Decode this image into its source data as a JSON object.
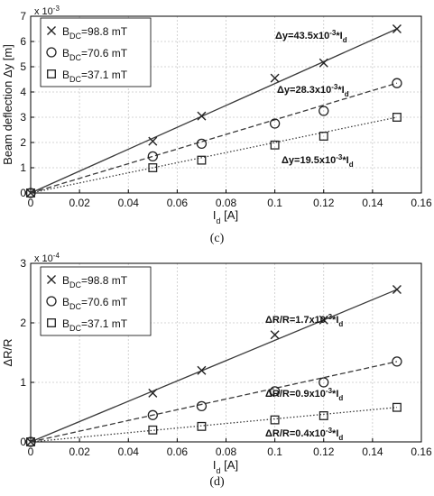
{
  "chart_data": [
    {
      "panel": "(c)",
      "type": "scatter",
      "ylabel": "Beam deflection  Δy [m]",
      "xlabel": "I_d [A]",
      "exponent_label": "x 10^-3",
      "xlim": [
        0,
        0.16
      ],
      "ylim": [
        0,
        7
      ],
      "xticks": [
        0,
        0.02,
        0.04,
        0.06,
        0.08,
        0.1,
        0.12,
        0.14,
        0.16
      ],
      "xtick_labels": [
        "0",
        "0.02",
        "0.04",
        "0.06",
        "0.08",
        "0.1",
        "0.12",
        "0.14",
        "0.16"
      ],
      "yticks": [
        0,
        1,
        2,
        3,
        4,
        5,
        6,
        7
      ],
      "ytick_labels": [
        "0",
        "1",
        "2",
        "3",
        "4",
        "5",
        "6",
        "7"
      ],
      "grid": true,
      "legend_position": "top-left",
      "series": [
        {
          "name": "B_DC=98.8 mT",
          "marker": "x",
          "line": "solid",
          "x": [
            0,
            0.05,
            0.07,
            0.1,
            0.12,
            0.15
          ],
          "y": [
            0,
            2.05,
            3.05,
            4.55,
            5.15,
            6.5
          ],
          "fit_slope": 43.5,
          "fit_label": "Δy=43.5x10^-3*I_d"
        },
        {
          "name": "B_DC=70.6 mT",
          "marker": "o",
          "line": "dashed",
          "x": [
            0,
            0.05,
            0.07,
            0.1,
            0.12,
            0.15
          ],
          "y": [
            0,
            1.45,
            1.95,
            2.75,
            3.25,
            4.35
          ],
          "fit_slope": 28.3,
          "fit_label": "Δy=28.3x10^-3*I_d"
        },
        {
          "name": "B_DC=37.1 mT",
          "marker": "s",
          "line": "dotted",
          "x": [
            0,
            0.05,
            0.07,
            0.1,
            0.12,
            0.15
          ],
          "y": [
            0,
            1.0,
            1.3,
            1.9,
            2.25,
            3.0
          ],
          "fit_slope": 19.5,
          "fit_label": "Δy=19.5x10^-3*I_d"
        }
      ]
    },
    {
      "panel": "(d)",
      "type": "scatter",
      "ylabel": "ΔR/R",
      "xlabel": "I_d [A]",
      "exponent_label": "x 10^-4",
      "xlim": [
        0,
        0.16
      ],
      "ylim": [
        0,
        3
      ],
      "xticks": [
        0,
        0.02,
        0.04,
        0.06,
        0.08,
        0.1,
        0.12,
        0.14,
        0.16
      ],
      "xtick_labels": [
        "0",
        "0.02",
        "0.04",
        "0.06",
        "0.08",
        "0.1",
        "0.12",
        "0.14",
        "0.16"
      ],
      "yticks": [
        0,
        1,
        2,
        3
      ],
      "ytick_labels": [
        "0",
        "1",
        "2",
        "3"
      ],
      "grid": true,
      "legend_position": "top-left",
      "series": [
        {
          "name": "B_DC=98.8 mT",
          "marker": "x",
          "line": "solid",
          "x": [
            0,
            0.05,
            0.07,
            0.1,
            0.12,
            0.15
          ],
          "y": [
            0,
            0.82,
            1.2,
            1.8,
            2.05,
            2.56
          ],
          "fit_slope": 17,
          "fit_label": "ΔR/R=1.7x10^-3*I_d"
        },
        {
          "name": "B_DC=70.6 mT",
          "marker": "o",
          "line": "dashed",
          "x": [
            0,
            0.05,
            0.07,
            0.1,
            0.12,
            0.15
          ],
          "y": [
            0,
            0.45,
            0.6,
            0.85,
            1.0,
            1.35
          ],
          "fit_slope": 9,
          "fit_label": "ΔR/R=0.9x10^-3*I_d"
        },
        {
          "name": "B_DC=37.1 mT",
          "marker": "s",
          "line": "dotted",
          "x": [
            0,
            0.05,
            0.07,
            0.1,
            0.12,
            0.15
          ],
          "y": [
            0,
            0.2,
            0.26,
            0.37,
            0.44,
            0.58
          ],
          "fit_slope": 4,
          "fit_label": "ΔR/R=0.4x10^-3*I_d"
        }
      ]
    }
  ],
  "colors": {
    "axis": "#000000",
    "grid": "#c8c8c8",
    "line": "#3a3a3a",
    "marker": "#222222"
  },
  "captions": {
    "c": "(c)",
    "d": "(d)"
  }
}
